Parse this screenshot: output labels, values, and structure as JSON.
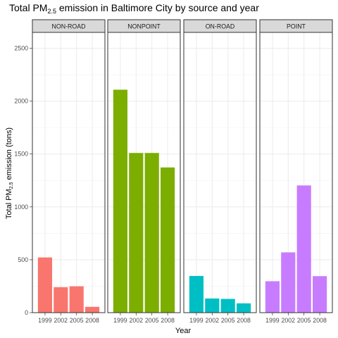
{
  "chart_data": {
    "type": "bar",
    "title_parts": [
      "Total PM",
      "2.5",
      " emission in Baltimore City by source and year"
    ],
    "xlabel": "Year",
    "ylabel_parts": [
      "Total PM",
      "2.5",
      " emission (tons)"
    ],
    "categories": [
      "1999",
      "2002",
      "2005",
      "2008"
    ],
    "ylim": [
      0,
      2650
    ],
    "yticks": [
      0,
      500,
      1000,
      1500,
      2000,
      2500
    ],
    "grid": true,
    "legend": "none",
    "panels": [
      {
        "name": "NON-ROAD",
        "color": "#F8766D",
        "values": [
          522,
          241,
          249,
          55
        ]
      },
      {
        "name": "NONPOINT",
        "color": "#7CAE00",
        "values": [
          2108,
          1510,
          1510,
          1373
        ]
      },
      {
        "name": "ON-ROAD",
        "color": "#00BFC4",
        "values": [
          347,
          134,
          130,
          88
        ]
      },
      {
        "name": "POINT",
        "color": "#C77CFF",
        "values": [
          297,
          570,
          1203,
          345
        ]
      }
    ]
  }
}
